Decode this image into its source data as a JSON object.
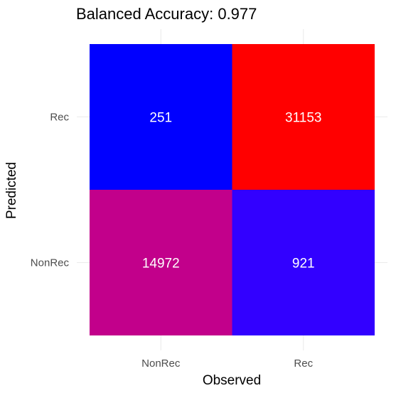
{
  "chart_data": {
    "type": "heatmap",
    "title": "Balanced Accuracy: 0.977",
    "xlabel": "Observed",
    "ylabel": "Predicted",
    "x_categories": [
      "NonRec",
      "Rec"
    ],
    "y_categories": [
      "NonRec",
      "Rec"
    ],
    "cells": [
      {
        "observed": "NonRec",
        "predicted": "Rec",
        "value": 251,
        "label": "251",
        "color": "#0000ff"
      },
      {
        "observed": "Rec",
        "predicted": "Rec",
        "value": 31153,
        "label": "31153",
        "color": "#ff0000"
      },
      {
        "observed": "NonRec",
        "predicted": "NonRec",
        "value": 14972,
        "label": "14972",
        "color": "#c2008b"
      },
      {
        "observed": "Rec",
        "predicted": "NonRec",
        "value": 921,
        "label": "921",
        "color": "#3200ff"
      }
    ],
    "grid": true,
    "legend": "none",
    "colors": {
      "gridline": "#ebebeb",
      "axis_text": "#4d4d4d",
      "title_text": "#000000",
      "cell_text": "#ffffff"
    }
  }
}
